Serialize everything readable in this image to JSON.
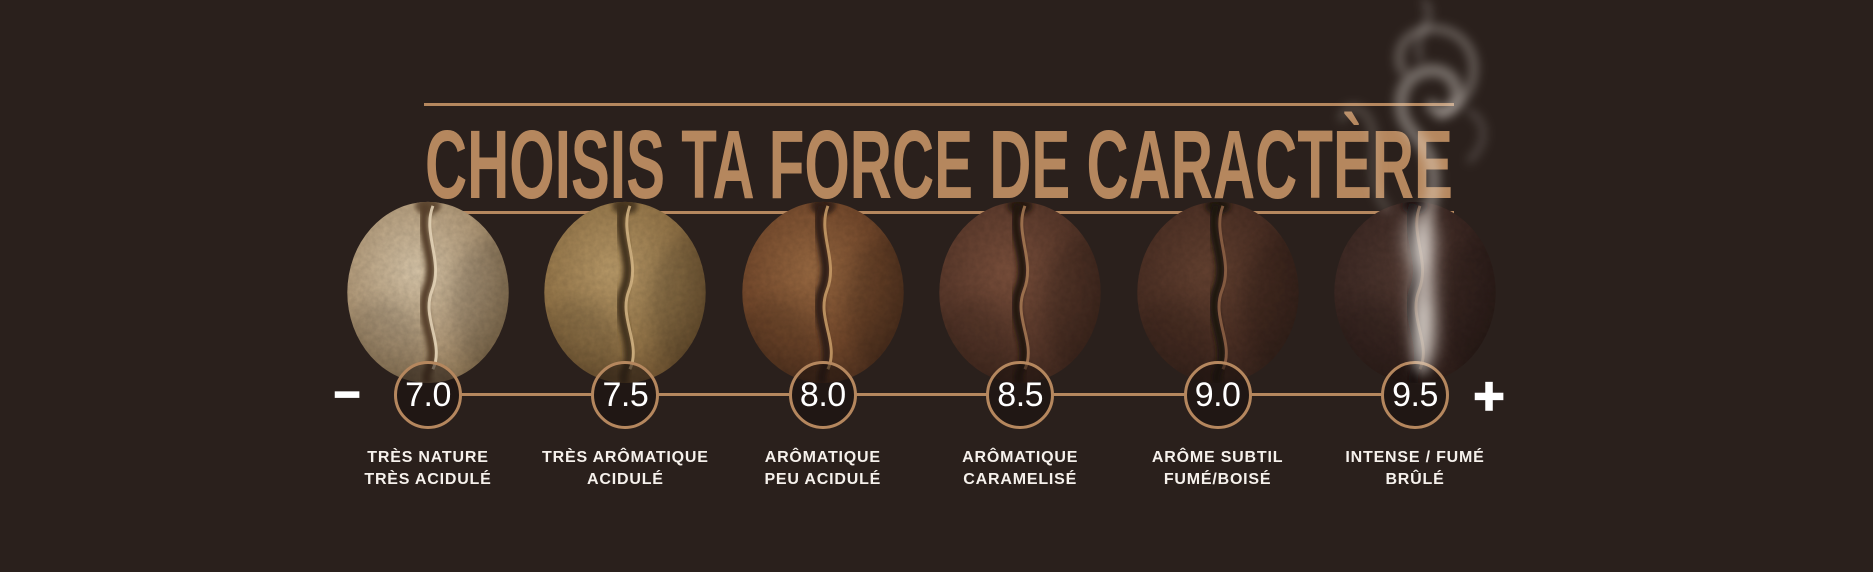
{
  "title": {
    "text": "CHOISIS TA FORCE DE CARACTÈRE"
  },
  "scale": {
    "minus_label": "−",
    "plus_label": "+"
  },
  "levels": [
    {
      "value": "7.0",
      "label_line1": "TRÈS NATURE",
      "label_line2": "TRÈS ACIDULÉ",
      "bean": {
        "light": "#d8c6a9",
        "mid": "#b49c7b",
        "dark": "#77603f",
        "crease": "#57402a",
        "ridge": "#e6d6ba"
      }
    },
    {
      "value": "7.5",
      "label_line1": "TRÈS ARÔMATIQUE",
      "label_line2": "ACIDULÉ",
      "bean": {
        "light": "#bb9c6a",
        "mid": "#96774a",
        "dark": "#5e4426",
        "crease": "#42301d",
        "ridge": "#d3b585"
      }
    },
    {
      "value": "8.0",
      "label_line1": "ARÔMATIQUE",
      "label_line2": "PEU ACIDULÉ",
      "bean": {
        "light": "#9a6a42",
        "mid": "#74492c",
        "dark": "#41281a",
        "crease": "#2e1d12",
        "ridge": "#c99e68"
      }
    },
    {
      "value": "8.5",
      "label_line1": "ARÔMATIQUE",
      "label_line2": "CARAMELISÉ",
      "bean": {
        "light": "#7b503c",
        "mid": "#5a392b",
        "dark": "#38231b",
        "crease": "#241510",
        "ridge": "#a87a55"
      }
    },
    {
      "value": "9.0",
      "label_line1": "ARÔME SUBTIL",
      "label_line2": "FUMÉ/BOISÉ",
      "bean": {
        "light": "#654231",
        "mid": "#4b2f24",
        "dark": "#30201a",
        "crease": "#1f120e",
        "ridge": "#8f6347"
      }
    },
    {
      "value": "9.5",
      "label_line1": "INTENSE / FUMÉ",
      "label_line2": "BRÛLÉ",
      "bean": {
        "light": "#503830",
        "mid": "#3c2823",
        "dark": "#281a16",
        "crease": "#180f0c",
        "ridge": "#775843"
      }
    }
  ],
  "colors": {
    "background": "#2a201c",
    "accent": "#b5875e",
    "value_text": "#ffffff",
    "label_text": "#f6f1ec",
    "steam": "#eae4de"
  }
}
